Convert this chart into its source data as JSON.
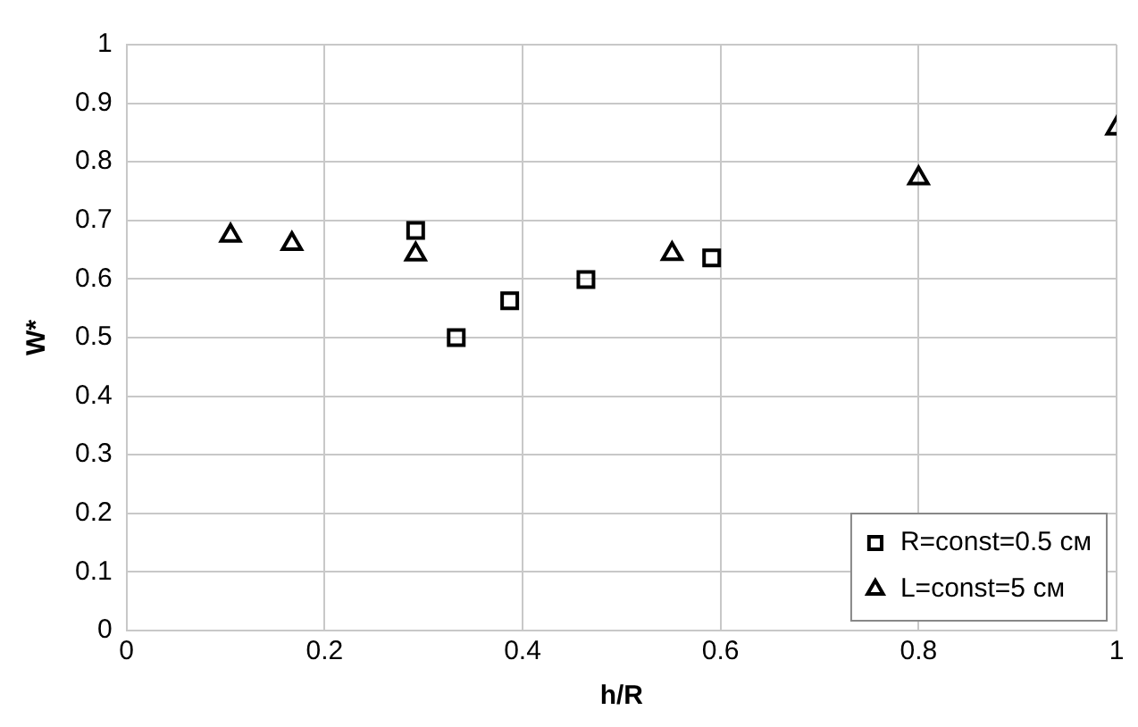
{
  "chart_data": {
    "type": "scatter",
    "xlabel": "h/R",
    "ylabel": "W*",
    "xlim": [
      0,
      1
    ],
    "xticks": [
      0,
      0.2,
      0.4,
      0.6,
      0.8,
      1
    ],
    "ylim": [
      0,
      1
    ],
    "yticks": [
      0,
      0.1,
      0.2,
      0.3,
      0.4,
      0.5,
      0.6,
      0.7,
      0.8,
      0.9,
      1
    ],
    "grid": true,
    "legend": "bottom right",
    "series": [
      {
        "name": "R=const=0.5 см",
        "color": "#000000",
        "marker": "square",
        "x": [
          0.292,
          0.333,
          0.387,
          0.464,
          0.591
        ],
        "values": [
          0.683,
          0.5,
          0.563,
          0.599,
          0.636
        ]
      },
      {
        "name": "L=const=5 см",
        "color": "#000000",
        "marker": "triangle",
        "x": [
          0.105,
          0.167,
          0.292,
          0.551,
          0.8,
          1.0
        ],
        "values": [
          0.674,
          0.66,
          0.642,
          0.643,
          0.772,
          0.857
        ]
      }
    ]
  }
}
